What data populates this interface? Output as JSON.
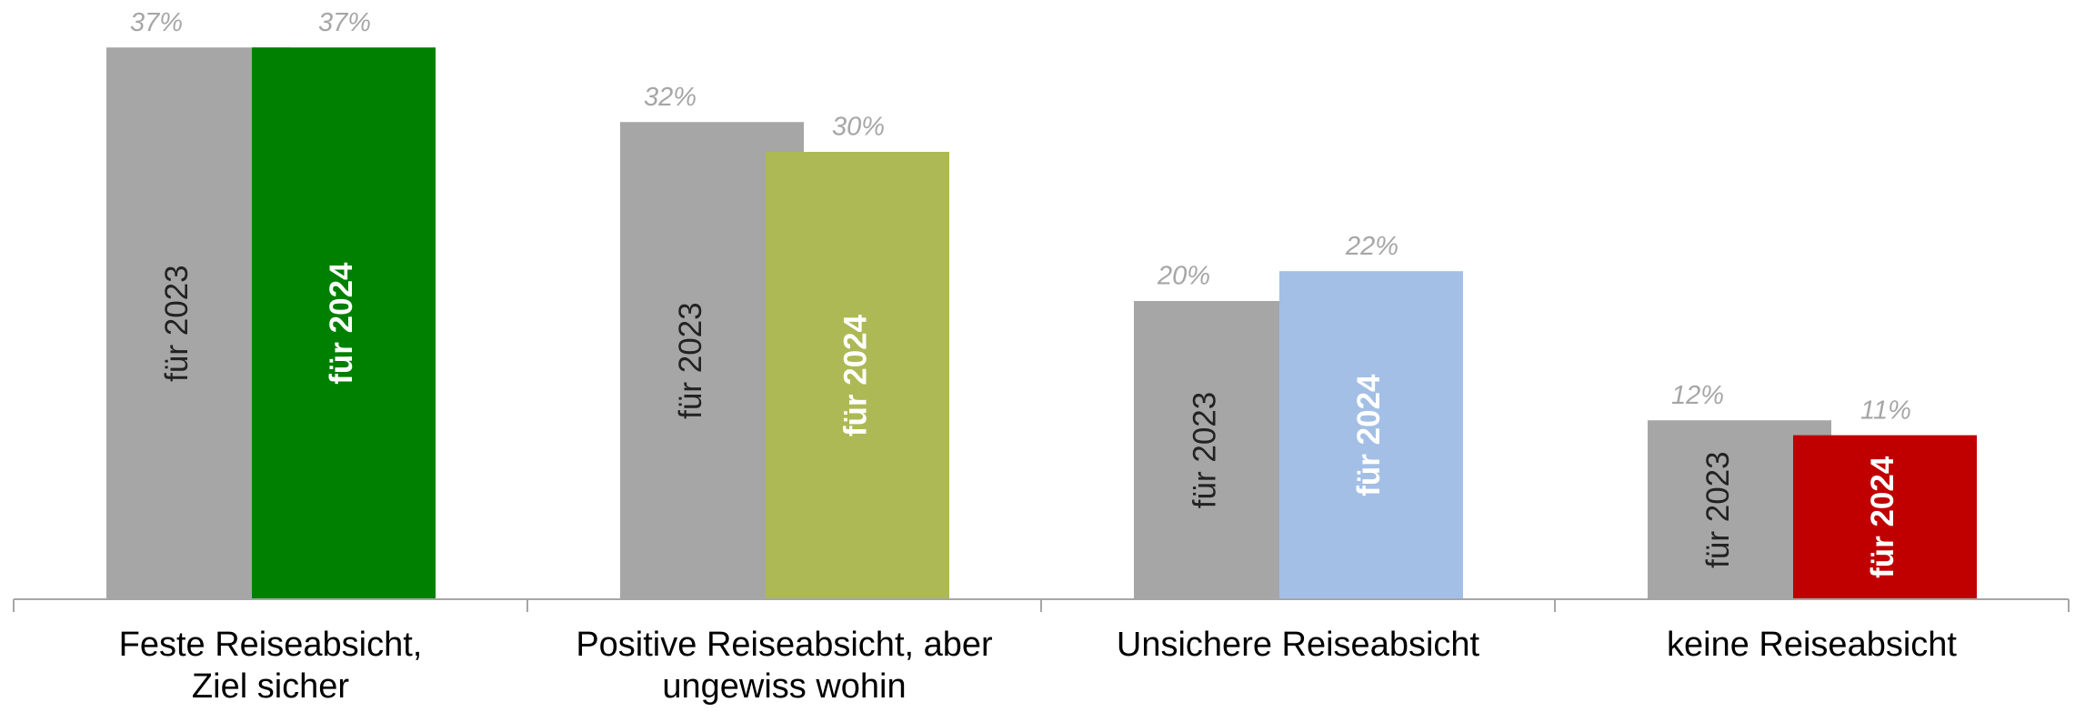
{
  "chart_data": {
    "type": "bar",
    "categories": [
      "Feste Reiseabsicht,\nZiel sicher",
      "Positive Reiseabsicht, aber\nungewiss wohin",
      "Unsichere Reiseabsicht",
      "keine Reiseabsicht"
    ],
    "series": [
      {
        "name": "für 2023",
        "color": "#a6a6a6",
        "values": [
          37,
          32,
          20,
          12
        ],
        "value_labels": [
          "37%",
          "32%",
          "20%",
          "12%"
        ]
      },
      {
        "name": "für 2024",
        "colors": [
          "#008000",
          "#adb954",
          "#a3bfe5",
          "#c00000"
        ],
        "values": [
          37,
          30,
          22,
          11
        ],
        "value_labels": [
          "37%",
          "30%",
          "22%",
          "11%"
        ]
      }
    ],
    "ylim": [
      0,
      40
    ]
  }
}
